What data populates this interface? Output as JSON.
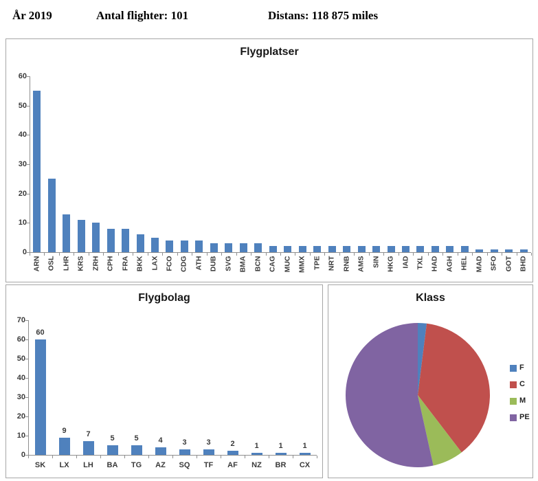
{
  "header": {
    "year_label": "År 2019",
    "flights_label": "Antal flighter: 101",
    "distance_label": "Distans: 118 875 miles"
  },
  "colors": {
    "bar": "#4f81bd",
    "axis": "#8e8e8e",
    "panel_border": "#a6a6a6",
    "tick_text": "#3a3a3a"
  },
  "chart_data": [
    {
      "id": "airports",
      "type": "bar",
      "title": "Flygplatser",
      "categories": [
        "ARN",
        "OSL",
        "LHR",
        "KRS",
        "ZRH",
        "CPH",
        "FRA",
        "BKK",
        "LAX",
        "FCO",
        "CDG",
        "ATH",
        "DUB",
        "SVG",
        "BMA",
        "BCN",
        "CAG",
        "MUC",
        "MMX",
        "TPE",
        "NRT",
        "RNB",
        "AMS",
        "SIN",
        "HKG",
        "IAD",
        "TXL",
        "HAD",
        "AGH",
        "HEL",
        "MAD",
        "SFO",
        "GOT",
        "BHD"
      ],
      "values": [
        55,
        25,
        13,
        11,
        10,
        8,
        8,
        6,
        5,
        4,
        4,
        4,
        3,
        3,
        3,
        3,
        2,
        2,
        2,
        2,
        2,
        2,
        2,
        2,
        2,
        2,
        2,
        2,
        2,
        2,
        1,
        1,
        1,
        1
      ],
      "xlabel": "",
      "ylabel": "",
      "ylim": [
        0,
        60
      ],
      "ytick_step": 10,
      "grid": false,
      "x_label_rotation": 90,
      "data_labels": false,
      "bar_color": "#4f81bd"
    },
    {
      "id": "airlines",
      "type": "bar",
      "title": "Flygbolag",
      "categories": [
        "SK",
        "LX",
        "LH",
        "BA",
        "TG",
        "AZ",
        "SQ",
        "TF",
        "AF",
        "NZ",
        "BR",
        "CX"
      ],
      "values": [
        60,
        9,
        7,
        5,
        5,
        4,
        3,
        3,
        2,
        1,
        1,
        1
      ],
      "xlabel": "",
      "ylabel": "",
      "ylim": [
        0,
        70
      ],
      "ytick_step": 10,
      "grid": false,
      "x_label_rotation": 0,
      "data_labels": true,
      "bar_color": "#4f81bd"
    },
    {
      "id": "class",
      "type": "pie",
      "title": "Klass",
      "labels": [
        "F",
        "C",
        "M",
        "PE"
      ],
      "values": [
        2,
        38,
        7,
        54
      ],
      "colors": [
        "#4f81bd",
        "#c0504d",
        "#9bbb59",
        "#8064a2"
      ],
      "legend_position": "right",
      "start_angle_deg": 0,
      "direction": "clockwise"
    }
  ]
}
